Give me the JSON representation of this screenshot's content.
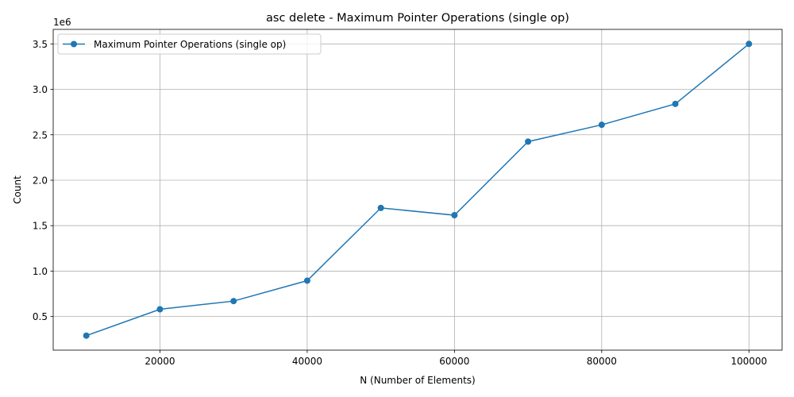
{
  "chart_data": {
    "type": "line",
    "title": "asc delete - Maximum Pointer Operations (single op)",
    "xlabel": "N (Number of Elements)",
    "ylabel": "Count",
    "y_offset_label": "1e6",
    "x": [
      10000,
      20000,
      30000,
      40000,
      50000,
      60000,
      70000,
      80000,
      90000,
      100000
    ],
    "series": [
      {
        "name": "Maximum Pointer Operations (single op)",
        "color": "#1f77b4",
        "marker": "circle",
        "values": [
          290000,
          580000,
          670000,
          895000,
          1695000,
          1615000,
          2425000,
          2610000,
          2840000,
          3500000
        ]
      }
    ],
    "xlim": [
      5500,
      104500
    ],
    "ylim": [
      130000,
      3660000
    ],
    "xticks": [
      20000,
      40000,
      60000,
      80000,
      100000
    ],
    "xtick_labels": [
      "20000",
      "40000",
      "60000",
      "80000",
      "100000"
    ],
    "yticks": [
      500000,
      1000000,
      1500000,
      2000000,
      2500000,
      3000000,
      3500000
    ],
    "ytick_labels": [
      "0.5",
      "1.0",
      "1.5",
      "2.0",
      "2.5",
      "3.0",
      "3.5"
    ],
    "grid": true,
    "legend_position": "top-left"
  }
}
